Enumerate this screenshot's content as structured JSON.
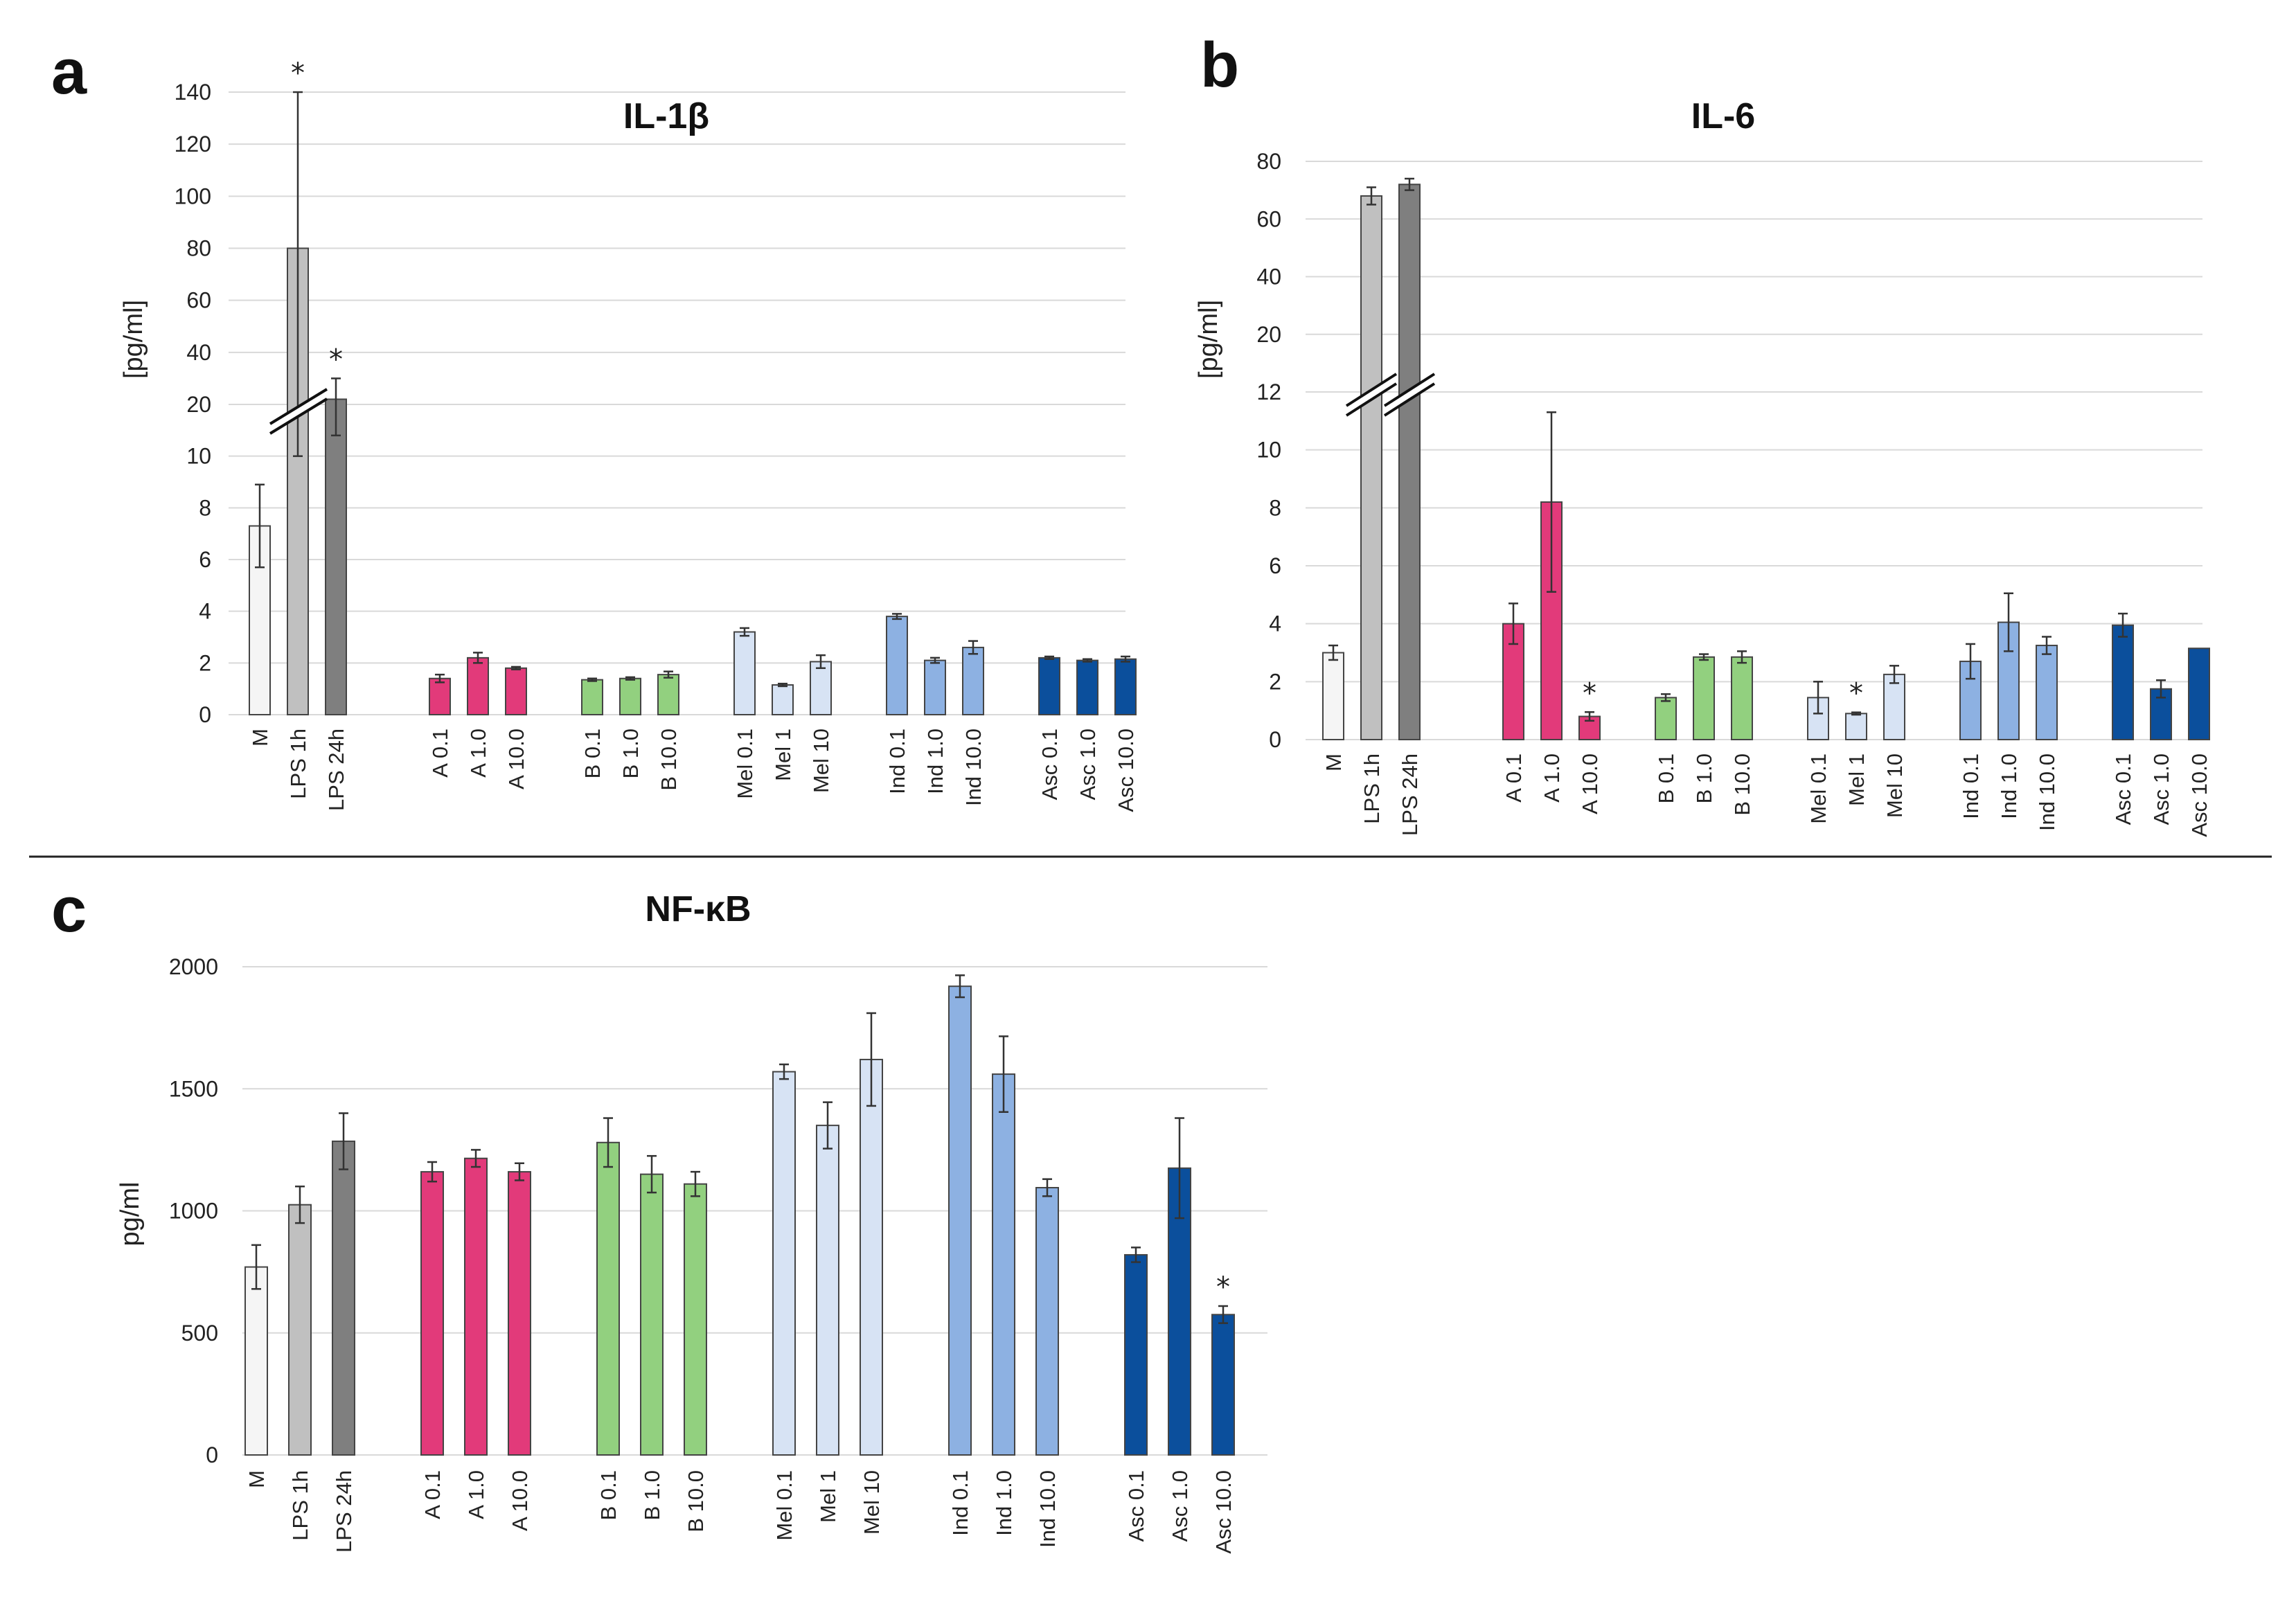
{
  "figure": {
    "separator": true
  },
  "colors": {
    "M": "#f5f5f5",
    "LPS 1h": "#c0c0c0",
    "LPS 24h": "#7f7f7f",
    "A": "#e23a7a",
    "B": "#92d07f",
    "Mel": "#d7e3f4",
    "Ind": "#8db1e2",
    "Asc": "#0b4f9c"
  },
  "chart_data": [
    {
      "panel": "a",
      "title": "IL-1β",
      "type": "bar",
      "ylabel": "[pg/ml]",
      "axis_break": true,
      "lower_ticks": [
        "0",
        "2",
        "4",
        "6",
        "8",
        "10",
        "20"
      ],
      "upper_ticks": [
        "40",
        "60",
        "80",
        "100",
        "120",
        "140"
      ],
      "lower_range": [
        0,
        20
      ],
      "upper_range": [
        20,
        140
      ],
      "groups": [
        {
          "colorKey": "ctrl",
          "bars": [
            {
              "label": "M",
              "value": 7.3,
              "err": 1.6,
              "color": "M"
            },
            {
              "label": "LPS 1h",
              "value": 80,
              "err": 70,
              "color": "LPS 1h",
              "star": true
            },
            {
              "label": "LPS 24h",
              "value": 22,
              "err": 8,
              "color": "LPS 24h",
              "star": true
            }
          ]
        },
        {
          "bars": [
            {
              "label": "A 0.1",
              "value": 1.4,
              "err": 0.15,
              "color": "A"
            },
            {
              "label": "A 1.0",
              "value": 2.2,
              "err": 0.2,
              "color": "A"
            },
            {
              "label": "A 10.0",
              "value": 1.8,
              "err": 0.05,
              "color": "A"
            }
          ]
        },
        {
          "bars": [
            {
              "label": "B 0.1",
              "value": 1.35,
              "err": 0.05,
              "color": "B"
            },
            {
              "label": "B 1.0",
              "value": 1.4,
              "err": 0.05,
              "color": "B"
            },
            {
              "label": "B 10.0",
              "value": 1.55,
              "err": 0.12,
              "color": "B"
            }
          ]
        },
        {
          "bars": [
            {
              "label": "Mel 0.1",
              "value": 3.2,
              "err": 0.15,
              "color": "Mel"
            },
            {
              "label": "Mel 1",
              "value": 1.15,
              "err": 0.05,
              "color": "Mel"
            },
            {
              "label": "Mel 10",
              "value": 2.05,
              "err": 0.25,
              "color": "Mel"
            }
          ]
        },
        {
          "bars": [
            {
              "label": "Ind 0.1",
              "value": 3.8,
              "err": 0.1,
              "color": "Ind"
            },
            {
              "label": "Ind 1.0",
              "value": 2.1,
              "err": 0.1,
              "color": "Ind"
            },
            {
              "label": "Ind 10.0",
              "value": 2.6,
              "err": 0.25,
              "color": "Ind"
            }
          ]
        },
        {
          "bars": [
            {
              "label": "Asc 0.1",
              "value": 2.2,
              "err": 0.05,
              "color": "Asc"
            },
            {
              "label": "Asc 1.0",
              "value": 2.1,
              "err": 0.05,
              "color": "Asc"
            },
            {
              "label": "Asc 10.0",
              "value": 2.15,
              "err": 0.1,
              "color": "Asc"
            }
          ]
        }
      ]
    },
    {
      "panel": "b",
      "title": "IL-6",
      "type": "bar",
      "ylabel": "[pg/ml]",
      "axis_break": true,
      "lower_ticks": [
        "0",
        "2",
        "4",
        "6",
        "8",
        "10",
        "12"
      ],
      "upper_ticks": [
        "20",
        "40",
        "60",
        "80"
      ],
      "lower_range": [
        0,
        12
      ],
      "upper_range": [
        12,
        80
      ],
      "groups": [
        {
          "bars": [
            {
              "label": "M",
              "value": 3.0,
              "err": 0.25,
              "color": "M"
            },
            {
              "label": "LPS 1h",
              "value": 68,
              "err": 3,
              "color": "LPS 1h"
            },
            {
              "label": "LPS 24h",
              "value": 72,
              "err": 2,
              "color": "LPS 24h"
            }
          ]
        },
        {
          "bars": [
            {
              "label": "A 0.1",
              "value": 4.0,
              "err": 0.7,
              "color": "A"
            },
            {
              "label": "A 1.0",
              "value": 8.2,
              "err": 3.1,
              "color": "A"
            },
            {
              "label": "A 10.0",
              "value": 0.8,
              "err": 0.15,
              "color": "A",
              "star": true
            }
          ]
        },
        {
          "bars": [
            {
              "label": "B 0.1",
              "value": 1.45,
              "err": 0.12,
              "color": "B"
            },
            {
              "label": "B 1.0",
              "value": 2.85,
              "err": 0.1,
              "color": "B"
            },
            {
              "label": "B 10.0",
              "value": 2.85,
              "err": 0.2,
              "color": "B"
            }
          ]
        },
        {
          "bars": [
            {
              "label": "Mel 0.1",
              "value": 1.45,
              "err": 0.55,
              "color": "Mel"
            },
            {
              "label": "Mel 1",
              "value": 0.9,
              "err": 0.04,
              "color": "Mel",
              "star": true
            },
            {
              "label": "Mel 10",
              "value": 2.25,
              "err": 0.3,
              "color": "Mel"
            }
          ]
        },
        {
          "bars": [
            {
              "label": "Ind 0.1",
              "value": 2.7,
              "err": 0.6,
              "color": "Ind"
            },
            {
              "label": "Ind 1.0",
              "value": 4.05,
              "err": 1.0,
              "color": "Ind"
            },
            {
              "label": "Ind 10.0",
              "value": 3.25,
              "err": 0.3,
              "color": "Ind"
            }
          ]
        },
        {
          "bars": [
            {
              "label": "Asc 0.1",
              "value": 3.95,
              "err": 0.4,
              "color": "Asc"
            },
            {
              "label": "Asc 1.0",
              "value": 1.75,
              "err": 0.3,
              "color": "Asc"
            },
            {
              "label": "Asc 10.0",
              "value": 3.15,
              "err": 0,
              "color": "Asc"
            }
          ]
        }
      ]
    },
    {
      "panel": "c",
      "title": "NF-κB",
      "type": "bar",
      "ylabel": "pg/ml",
      "axis_break": false,
      "ticks": [
        "0",
        "500",
        "1000",
        "1500",
        "2000"
      ],
      "range": [
        0,
        2000
      ],
      "groups": [
        {
          "bars": [
            {
              "label": "M",
              "value": 770,
              "err": 90,
              "color": "M"
            },
            {
              "label": "LPS 1h",
              "value": 1025,
              "err": 75,
              "color": "LPS 1h"
            },
            {
              "label": "LPS 24h",
              "value": 1285,
              "err": 115,
              "color": "LPS 24h"
            }
          ]
        },
        {
          "bars": [
            {
              "label": "A 0.1",
              "value": 1160,
              "err": 40,
              "color": "A"
            },
            {
              "label": "A 1.0",
              "value": 1215,
              "err": 35,
              "color": "A"
            },
            {
              "label": "A 10.0",
              "value": 1160,
              "err": 35,
              "color": "A"
            }
          ]
        },
        {
          "bars": [
            {
              "label": "B 0.1",
              "value": 1280,
              "err": 100,
              "color": "B"
            },
            {
              "label": "B 1.0",
              "value": 1150,
              "err": 75,
              "color": "B"
            },
            {
              "label": "B 10.0",
              "value": 1110,
              "err": 50,
              "color": "B"
            }
          ]
        },
        {
          "bars": [
            {
              "label": "Mel 0.1",
              "value": 1570,
              "err": 30,
              "color": "Mel"
            },
            {
              "label": "Mel 1",
              "value": 1350,
              "err": 95,
              "color": "Mel"
            },
            {
              "label": "Mel 10",
              "value": 1620,
              "err": 190,
              "color": "Mel"
            }
          ]
        },
        {
          "bars": [
            {
              "label": "Ind 0.1",
              "value": 1920,
              "err": 45,
              "color": "Ind"
            },
            {
              "label": "Ind 1.0",
              "value": 1560,
              "err": 155,
              "color": "Ind"
            },
            {
              "label": "Ind 10.0",
              "value": 1095,
              "err": 35,
              "color": "Ind"
            }
          ]
        },
        {
          "bars": [
            {
              "label": "Asc 0.1",
              "value": 820,
              "err": 30,
              "color": "Asc"
            },
            {
              "label": "Asc 1.0",
              "value": 1175,
              "err": 205,
              "color": "Asc"
            },
            {
              "label": "Asc 10.0",
              "value": 575,
              "err": 35,
              "color": "Asc",
              "star": true
            }
          ]
        }
      ]
    }
  ]
}
